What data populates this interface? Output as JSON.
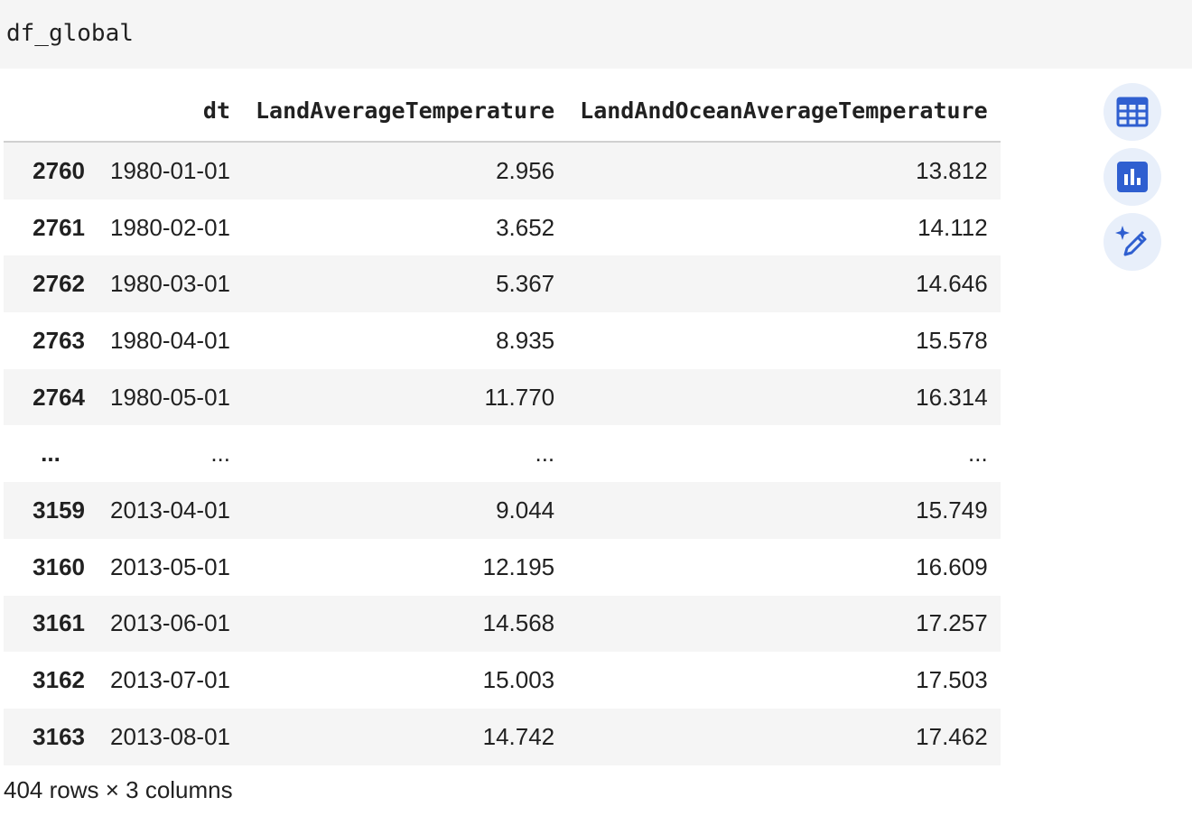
{
  "code_cell": {
    "text": "df_global"
  },
  "table": {
    "columns": [
      "dt",
      "LandAverageTemperature",
      "LandAndOceanAverageTemperature"
    ],
    "rows": [
      {
        "index": "2760",
        "dt": "1980-01-01",
        "land": "2.956",
        "land_ocean": "13.812"
      },
      {
        "index": "2761",
        "dt": "1980-02-01",
        "land": "3.652",
        "land_ocean": "14.112"
      },
      {
        "index": "2762",
        "dt": "1980-03-01",
        "land": "5.367",
        "land_ocean": "14.646"
      },
      {
        "index": "2763",
        "dt": "1980-04-01",
        "land": "8.935",
        "land_ocean": "15.578"
      },
      {
        "index": "2764",
        "dt": "1980-05-01",
        "land": "11.770",
        "land_ocean": "16.314"
      },
      {
        "index": "...",
        "dt": "...",
        "land": "...",
        "land_ocean": "..."
      },
      {
        "index": "3159",
        "dt": "2013-04-01",
        "land": "9.044",
        "land_ocean": "15.749"
      },
      {
        "index": "3160",
        "dt": "2013-05-01",
        "land": "12.195",
        "land_ocean": "16.609"
      },
      {
        "index": "3161",
        "dt": "2013-06-01",
        "land": "14.568",
        "land_ocean": "17.257"
      },
      {
        "index": "3162",
        "dt": "2013-07-01",
        "land": "15.003",
        "land_ocean": "17.503"
      },
      {
        "index": "3163",
        "dt": "2013-08-01",
        "land": "14.742",
        "land_ocean": "17.462"
      }
    ],
    "shape_text": "404 rows × 3 columns"
  },
  "side_buttons": [
    {
      "icon": "table-icon"
    },
    {
      "icon": "bar-chart-icon"
    },
    {
      "icon": "magic-pen-icon"
    }
  ],
  "colors": {
    "button_bg": "#e8effa",
    "icon_blue": "#2f5fd0",
    "stripe": "#f5f5f5"
  }
}
